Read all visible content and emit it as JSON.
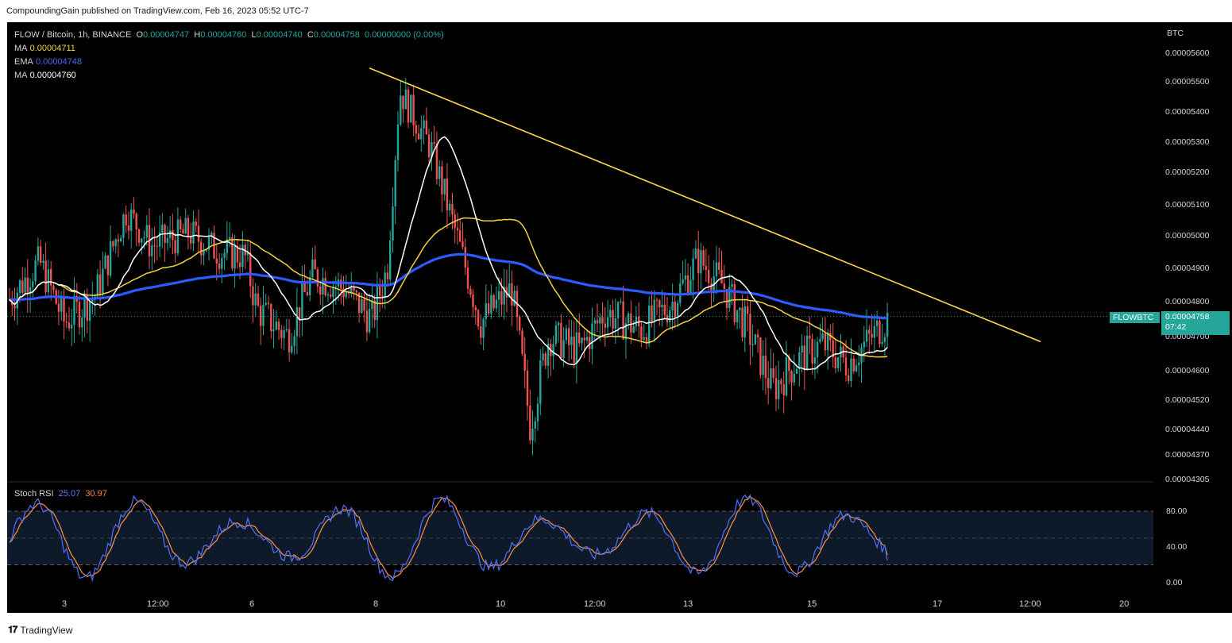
{
  "header": {
    "published": "CompoundingGain published on TradingView.com, Feb 16, 2023 05:52 UTC-7"
  },
  "legend": {
    "symbol": "FLOW / Bitcoin, 1h, BINANCE",
    "o_label": "O",
    "o": "0.00004747",
    "h_label": "H",
    "h": "0.00004760",
    "l_label": "L",
    "l": "0.00004740",
    "c_label": "C",
    "c": "0.00004758",
    "change": "0.00000000 (0.00%)",
    "ma1_label": "MA",
    "ma1": "0.00004711",
    "ema_label": "EMA",
    "ema": "0.00004748",
    "ma2_label": "MA",
    "ma2": "0.00004760"
  },
  "stoch_rsi": {
    "label": "Stoch RSI",
    "k": "25.07",
    "d": "30.97",
    "levels": [
      "80.00",
      "40.00",
      "0.00"
    ],
    "upper_band": 80,
    "lower_band": 20
  },
  "price_axis": {
    "currency": "BTC",
    "ticks": [
      "0.00005600",
      "0.00005500",
      "0.00005400",
      "0.00005300",
      "0.00005200",
      "0.00005100",
      "0.00005000",
      "0.00004900",
      "0.00004800",
      "0.00004700",
      "0.00004600",
      "0.00004520",
      "0.00004440",
      "0.00004370",
      "0.00004305"
    ]
  },
  "time_axis": {
    "ticks": [
      "3",
      "12:00",
      "6",
      "8",
      "10",
      "12:00",
      "13",
      "15",
      "17",
      "12:00",
      "20"
    ]
  },
  "last_price": {
    "symbol_tag": "FLOWBTC",
    "price": "0.00004758",
    "countdown": "07:42"
  },
  "footer": {
    "brand": "TradingView"
  },
  "colors": {
    "background": "#000000",
    "up": "#26a69a",
    "down": "#ef5350",
    "ma_yellow": "#f2d33f",
    "ema_blue": "#2e5bff",
    "ma_white": "#ffffff",
    "trendline": "#ffd84a",
    "stoch_k": "#4a6cf0",
    "stoch_d": "#f0883e"
  },
  "chart_data": {
    "type": "candlestick",
    "symbol": "FLOW / Bitcoin",
    "interval": "1h",
    "exchange": "BINANCE",
    "ylim": [
      4.305e-05,
      5.6e-05
    ],
    "grid": false,
    "ohlc_anchor_closes": [
      [
        2,
        4.78e-05
      ],
      [
        2.6,
        4.92e-05
      ],
      [
        3,
        4.74e-05
      ],
      [
        3.5,
        4.82e-05
      ],
      [
        4,
        5.08e-05
      ],
      [
        4.4,
        4.97e-05
      ],
      [
        5,
        5.01e-05
      ],
      [
        5.5,
        4.95e-05
      ],
      [
        5.9,
        4.94e-05
      ],
      [
        6.1,
        4.78e-05
      ],
      [
        6.6,
        4.7e-05
      ],
      [
        7,
        4.88e-05
      ],
      [
        7.5,
        4.84e-05
      ],
      [
        7.95,
        4.75e-05
      ],
      [
        8.2,
        4.9e-05
      ],
      [
        8.4,
        5.47e-05
      ],
      [
        8.9,
        5.28e-05
      ],
      [
        9.3,
        5.01e-05
      ],
      [
        9.7,
        4.74e-05
      ],
      [
        10.2,
        4.84e-05
      ],
      [
        10.5,
        4.45e-05
      ],
      [
        10.8,
        4.7e-05
      ],
      [
        11.3,
        4.66e-05
      ],
      [
        11.7,
        4.77e-05
      ],
      [
        12.3,
        4.72e-05
      ],
      [
        12.8,
        4.8e-05
      ],
      [
        13.2,
        4.93e-05
      ],
      [
        13.6,
        4.85e-05
      ],
      [
        14,
        4.72e-05
      ],
      [
        14.4,
        4.55e-05
      ],
      [
        14.8,
        4.63e-05
      ],
      [
        15.2,
        4.68e-05
      ],
      [
        15.6,
        4.62e-05
      ],
      [
        16,
        4.7e-05
      ],
      [
        16.4,
        4.78e-05
      ],
      [
        16.8,
        4.72e-05
      ],
      [
        17.1,
        4.88e-05
      ],
      [
        17.4,
        4.76e-05
      ]
    ],
    "trendline": {
      "start": {
        "x": "Feb 7 ~23:00",
        "y": 5.548e-05
      },
      "end": {
        "x": "Feb 18 ~12:00",
        "y": 4.685e-05
      },
      "color": "#ffd84a"
    },
    "series": [
      {
        "name": "MA",
        "value": 4.711e-05,
        "color": "#f2d33f"
      },
      {
        "name": "EMA",
        "value": 4.748e-05,
        "color": "#2e5bff"
      },
      {
        "name": "MA",
        "value": 4.76e-05,
        "color": "#ffffff"
      }
    ],
    "indicator": {
      "name": "Stoch RSI",
      "k_last": 25.07,
      "d_last": 30.97,
      "ylim": [
        0,
        100
      ],
      "bands": [
        20,
        80
      ]
    }
  }
}
